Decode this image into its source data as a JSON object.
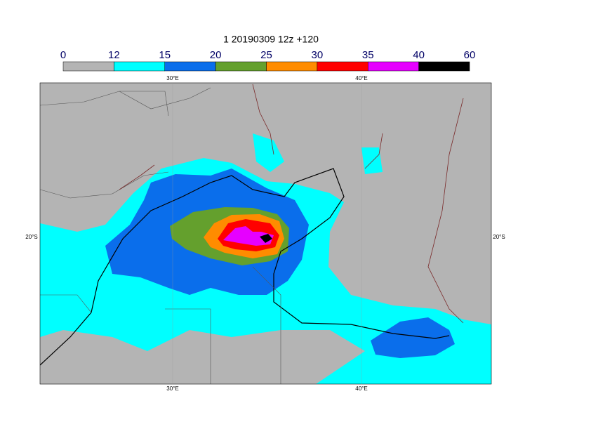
{
  "title": "1 20190309 12z +120",
  "colorbar": {
    "labels": [
      0,
      12,
      15,
      20,
      25,
      30,
      35,
      40,
      60
    ],
    "colors": [
      "#b4b4b4",
      "#00ffff",
      "#0a6eeb",
      "#64a02d",
      "#ff8c00",
      "#ff0000",
      "#e600ff",
      "#000000"
    ]
  },
  "map": {
    "lon_labels": [
      "30°E",
      "40°E"
    ],
    "lat_labels": [
      "20°S"
    ]
  }
}
